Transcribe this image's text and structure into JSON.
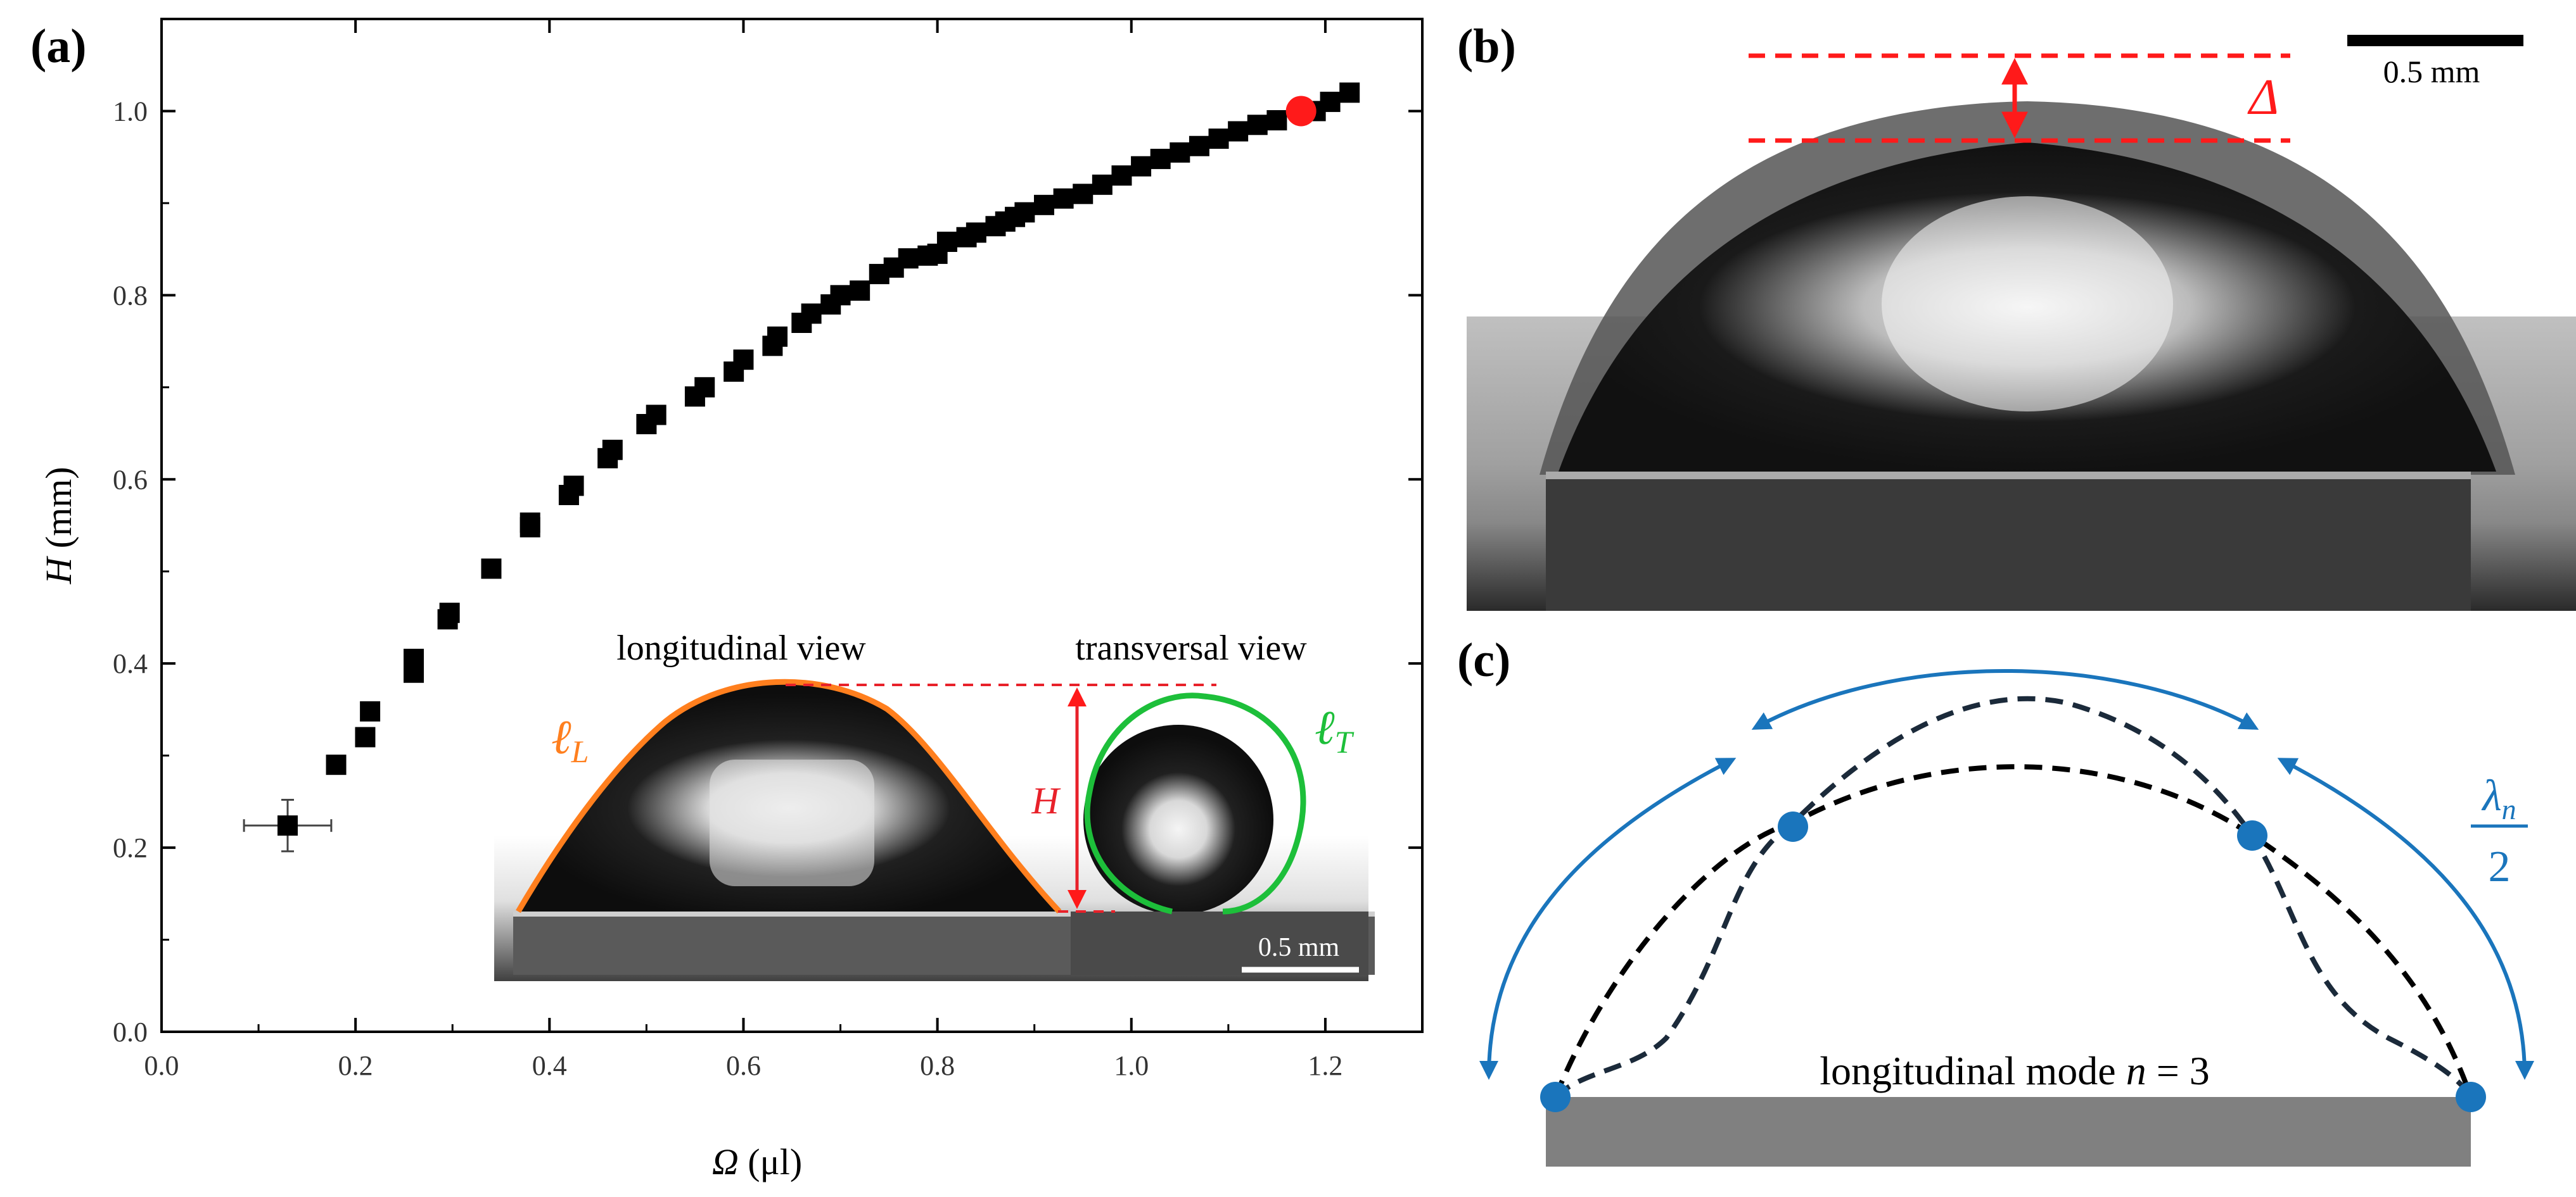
{
  "panels": {
    "a": "(a)",
    "b": "(b)",
    "c": "(c)"
  },
  "chart_data": {
    "type": "scatter",
    "title": "",
    "xlabel_symbol": "Ω",
    "xlabel_unit": "(μl)",
    "ylabel_symbol": "H",
    "ylabel_unit": "(mm)",
    "xlim": [
      0.0,
      1.3
    ],
    "ylim": [
      0.0,
      1.1
    ],
    "xticks": [
      "0.0",
      "0.2",
      "0.4",
      "0.6",
      "0.8",
      "1.0",
      "1.2"
    ],
    "yticks": [
      "0.0",
      "0.2",
      "0.4",
      "0.6",
      "0.8",
      "1.0"
    ],
    "grid": false,
    "series": [
      {
        "name": "measurements",
        "marker": "square",
        "color": "#000000",
        "x": [
          0.18,
          0.21,
          0.215,
          0.26,
          0.26,
          0.26,
          0.295,
          0.297,
          0.34,
          0.38,
          0.38,
          0.42,
          0.425,
          0.46,
          0.465,
          0.5,
          0.51,
          0.55,
          0.56,
          0.59,
          0.6,
          0.63,
          0.635,
          0.66,
          0.67,
          0.69,
          0.7,
          0.72,
          0.74,
          0.755,
          0.77,
          0.79,
          0.8,
          0.81,
          0.83,
          0.84,
          0.86,
          0.87,
          0.88,
          0.89,
          0.91,
          0.93,
          0.95,
          0.97,
          0.99,
          1.01,
          1.03,
          1.05,
          1.07,
          1.09,
          1.11,
          1.13,
          1.15,
          1.19,
          1.205,
          1.225
        ],
        "y": [
          0.29,
          0.32,
          0.348,
          0.39,
          0.4,
          0.405,
          0.448,
          0.455,
          0.503,
          0.548,
          0.553,
          0.583,
          0.593,
          0.623,
          0.632,
          0.66,
          0.67,
          0.69,
          0.7,
          0.717,
          0.73,
          0.745,
          0.755,
          0.77,
          0.78,
          0.79,
          0.8,
          0.805,
          0.823,
          0.83,
          0.84,
          0.843,
          0.845,
          0.858,
          0.863,
          0.868,
          0.875,
          0.88,
          0.885,
          0.89,
          0.898,
          0.905,
          0.91,
          0.92,
          0.93,
          0.94,
          0.948,
          0.955,
          0.962,
          0.97,
          0.978,
          0.985,
          0.99,
          1.0,
          1.01,
          1.02
        ]
      },
      {
        "name": "error-bar point",
        "marker": "square",
        "color": "#000000",
        "x": [
          0.13
        ],
        "y": [
          0.224
        ],
        "xerr": 0.045,
        "yerr": 0.028
      },
      {
        "name": "highlighted point",
        "marker": "circle",
        "color": "#ff1a1a",
        "x": [
          1.175
        ],
        "y": [
          1.0
        ]
      }
    ]
  },
  "inset": {
    "longitudinal_title": "longitudinal view",
    "transversal_title": "transversal view",
    "height_label": "H",
    "lL_symbol": "ℓ",
    "lL_sub": "L",
    "lT_symbol": "ℓ",
    "lT_sub": "T",
    "scale_text": "0.5 mm",
    "colors": {
      "lL": "#ff7f1e",
      "lT": "#1dbf3a",
      "height": "#e8212a"
    }
  },
  "panel_b": {
    "scale_text": "0.5 mm",
    "delta_label": "Δ",
    "colors": {
      "delta": "#ff1a1a"
    }
  },
  "panel_c": {
    "mode_text_prefix": "longitudinal mode ",
    "mode_symbol": "n",
    "mode_value": " = 3",
    "lambda_symbol": "λ",
    "lambda_sub": "n",
    "lambda_denominator": "2",
    "colors": {
      "arc": "#1a75bc",
      "substrate": "#808080"
    }
  }
}
